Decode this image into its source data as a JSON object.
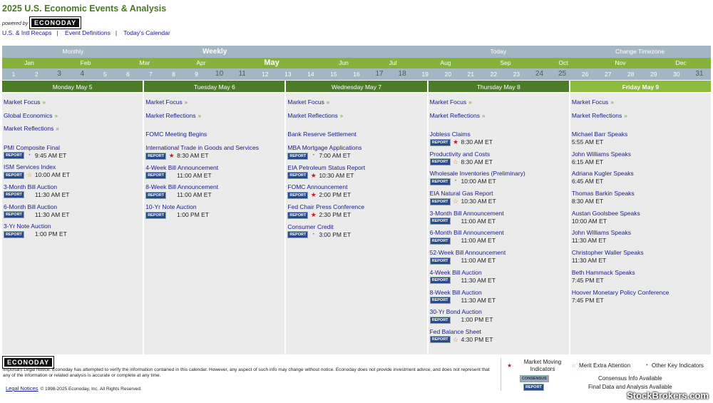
{
  "header": {
    "title": "2025 U.S. Economic Events & Analysis",
    "powered_by": "powered by",
    "logo_text": "ECONODAY",
    "links": [
      "U.S. & Intl Recaps",
      "Event Definitions",
      "Today's Calendar"
    ]
  },
  "nav": {
    "views": [
      "Monthly",
      "Weekly",
      "",
      "Today",
      "Change Timezone"
    ],
    "months": [
      "Jan",
      "Feb",
      "Mar",
      "Apr",
      "May",
      "Jun",
      "Jul",
      "Aug",
      "Sep",
      "Oct",
      "Nov",
      "Dec"
    ],
    "current_month": "May",
    "days": [
      "1",
      "2",
      "3",
      "4",
      "5",
      "6",
      "7",
      "8",
      "9",
      "10",
      "11",
      "12",
      "13",
      "14",
      "15",
      "16",
      "17",
      "18",
      "19",
      "20",
      "21",
      "22",
      "23",
      "24",
      "25",
      "26",
      "27",
      "28",
      "29",
      "30",
      "31"
    ],
    "highlighted_days": [
      "3",
      "4",
      "10",
      "11",
      "17",
      "18",
      "24",
      "25",
      "31"
    ]
  },
  "report_label": "REPORT",
  "days": [
    {
      "label": "Monday May 5",
      "links": [
        "Market Focus",
        "Global Economics",
        "Market Reflections"
      ],
      "events": [
        {
          "name": "PMI Composite Final",
          "report": true,
          "icon": "dot",
          "time": "9:45 AM ET"
        },
        {
          "name": "ISM Services Index",
          "report": true,
          "icon": "ostar",
          "time": "10:00 AM ET"
        },
        {
          "name": "3-Month Bill Auction",
          "report": true,
          "icon": "",
          "time": "11:30 AM ET"
        },
        {
          "name": "6-Month Bill Auction",
          "report": true,
          "icon": "",
          "time": "11:30 AM ET"
        },
        {
          "name": "3-Yr Note Auction",
          "report": true,
          "icon": "",
          "time": "1:00 PM ET"
        }
      ]
    },
    {
      "label": "Tuesday May 6",
      "links": [
        "Market Focus",
        "Market Reflections"
      ],
      "events": [
        {
          "name": "FOMC Meeting Begins"
        },
        {
          "name": "International Trade in Goods and Services",
          "report": true,
          "icon": "star",
          "time": "8:30 AM ET"
        },
        {
          "name": "4-Week Bill Announcement",
          "report": true,
          "icon": "",
          "time": "11:00 AM ET"
        },
        {
          "name": "8-Week Bill Announcement",
          "report": true,
          "icon": "",
          "time": "11:00 AM ET"
        },
        {
          "name": "10-Yr Note Auction",
          "report": true,
          "icon": "",
          "time": "1:00 PM ET"
        }
      ]
    },
    {
      "label": "Wednesday May 7",
      "links": [
        "Market Focus",
        "Market Reflections"
      ],
      "events": [
        {
          "name": "Bank Reserve Settlement"
        },
        {
          "name": "MBA Mortgage Applications",
          "report": true,
          "icon": "dot",
          "time": "7:00 AM ET"
        },
        {
          "name": "EIA Petroleum Status Report",
          "report": true,
          "icon": "star",
          "time": "10:30 AM ET"
        },
        {
          "name": "FOMC Announcement",
          "report": true,
          "icon": "star",
          "time": "2:00 PM ET"
        },
        {
          "name": "Fed Chair Press Conference",
          "report": true,
          "icon": "star",
          "time": "2:30 PM ET"
        },
        {
          "name": "Consumer Credit",
          "report": true,
          "icon": "dot",
          "time": "3:00 PM ET"
        }
      ]
    },
    {
      "label": "Thursday May 8",
      "links": [
        "Market Focus",
        "Market Reflections"
      ],
      "events": [
        {
          "name": "Jobless Claims",
          "report": true,
          "icon": "star",
          "time": "8:30 AM ET"
        },
        {
          "name": "Productivity and Costs",
          "report": true,
          "icon": "ostar",
          "time": "8:30 AM ET"
        },
        {
          "name": "Wholesale Inventories (Preliminary)",
          "report": true,
          "icon": "dot",
          "time": "10:00 AM ET"
        },
        {
          "name": "EIA Natural Gas Report",
          "report": true,
          "icon": "ostar",
          "time": "10:30 AM ET"
        },
        {
          "name": "3-Month Bill Announcement",
          "report": true,
          "icon": "",
          "time": "11:00 AM ET"
        },
        {
          "name": "6-Month Bill Announcement",
          "report": true,
          "icon": "",
          "time": "11:00 AM ET"
        },
        {
          "name": "52-Week Bill Announcement",
          "report": true,
          "icon": "",
          "time": "11:00 AM ET"
        },
        {
          "name": "4-Week Bill Auction",
          "report": true,
          "icon": "",
          "time": "11:30 AM ET"
        },
        {
          "name": "8-Week Bill Auction",
          "report": true,
          "icon": "",
          "time": "11:30 AM ET"
        },
        {
          "name": "30-Yr Bond Auction",
          "report": true,
          "icon": "",
          "time": "1:00 PM ET"
        },
        {
          "name": "Fed Balance Sheet",
          "report": true,
          "icon": "ostar",
          "time": "4:30 PM ET"
        }
      ]
    },
    {
      "label": "Friday May 9",
      "today": true,
      "links": [
        "Market Focus",
        "Market Reflections"
      ],
      "events": [
        {
          "name": "Michael Barr Speaks",
          "time": "5:55 AM ET"
        },
        {
          "name": "John Williams Speaks",
          "time": "6:15 AM ET"
        },
        {
          "name": "Adriana Kugler Speaks",
          "time": "6:45 AM ET"
        },
        {
          "name": "Thomas Barkin Speaks",
          "time": "8:30 AM ET"
        },
        {
          "name": "Austan Goolsbee Speaks",
          "time": "10:00 AM ET"
        },
        {
          "name": "John Williams Speaks",
          "time": "11:30 AM ET"
        },
        {
          "name": "Christopher Waller Speaks",
          "time": "11:30 AM ET"
        },
        {
          "name": "Beth Hammack Speaks",
          "time": "7:45 PM ET"
        },
        {
          "name": "Hoover Monetary Policy Conference",
          "time": "7:45 PM ET"
        }
      ]
    }
  ],
  "footer": {
    "logo_text": "ECONODAY",
    "legal": "Important Legal Notice: Econoday has attempted to verify the information contained in this calendar. However, any aspect of such info may change without notice. Econoday does not provide investment advice, and does not represent that any of the information or related analysis is accurate or complete at any time.",
    "legal_link": "Legal Notices",
    "copyright": "© 1998-2025 Econoday, Inc. All Rights Reserved.",
    "legend": {
      "market_moving": "Market Moving Indicators",
      "merit": "Merit Extra Attention",
      "other": "Other Key Indicators",
      "consensus_badge": "CONSENSUS",
      "consensus": "Consensus Info Available",
      "report_badge": "REPORT",
      "final": "Final Data and Analysis Available"
    },
    "watermark": "StockBrokers.com"
  },
  "colors": {
    "title": "#4a7a1f",
    "nav_gray": "#a3b6c4",
    "nav_green": "#84b23a",
    "day_header": "#4b7d29",
    "today_header": "#8dbb3f",
    "link": "#1a1a8a",
    "market_moving": "#c02020",
    "merit": "#d88a20"
  }
}
